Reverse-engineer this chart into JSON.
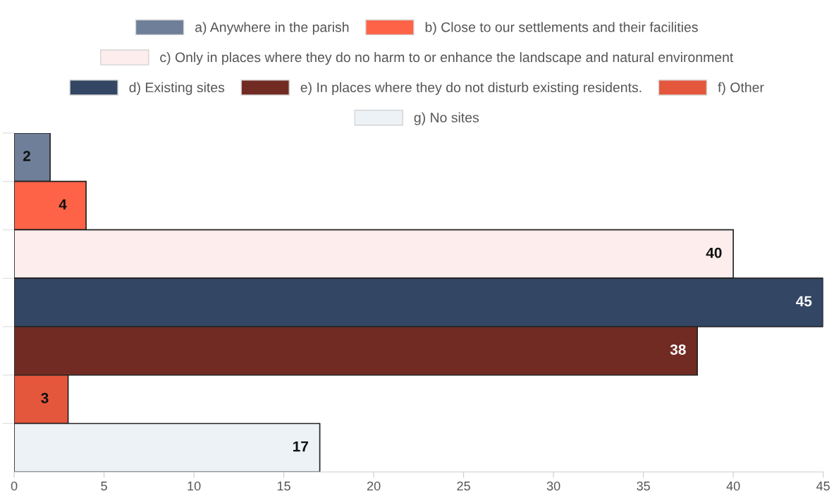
{
  "chart_data": {
    "type": "bar",
    "orientation": "horizontal",
    "stacked": true,
    "categories": [
      null,
      null,
      null,
      null,
      null,
      null,
      null
    ],
    "series": [
      {
        "name": "a) Anywhere in the parish",
        "color": "#6f7f99",
        "values": [
          2,
          null,
          null,
          null,
          null,
          null,
          null
        ]
      },
      {
        "name": "b) Close to our settlements and their facilities",
        "color": "#fe6347",
        "values": [
          null,
          4,
          null,
          null,
          null,
          null,
          null
        ]
      },
      {
        "name": "c) Only in places where they do no harm to or enhance the landscape and natural environment",
        "color": "#fdeded",
        "values": [
          null,
          null,
          40,
          null,
          null,
          null,
          null
        ]
      },
      {
        "name": "d) Existing sites",
        "color": "#334663",
        "values": [
          null,
          null,
          null,
          45,
          null,
          null,
          null
        ]
      },
      {
        "name": "e) In places where they do not disturb existing residents.",
        "color": "#722b23",
        "values": [
          null,
          null,
          null,
          null,
          38,
          null,
          null
        ]
      },
      {
        "name": "f) Other",
        "color": "#e5573c",
        "values": [
          null,
          null,
          null,
          null,
          null,
          3,
          null
        ]
      },
      {
        "name": "g) No sites",
        "color": "#edf2f6",
        "values": [
          null,
          null,
          null,
          null,
          null,
          null,
          17
        ]
      }
    ],
    "xlim": [
      0,
      45
    ],
    "xticks": [
      0,
      5,
      10,
      15,
      20,
      25,
      30,
      35,
      40,
      45
    ],
    "data_labels": true,
    "legend": "top",
    "grid": false
  }
}
